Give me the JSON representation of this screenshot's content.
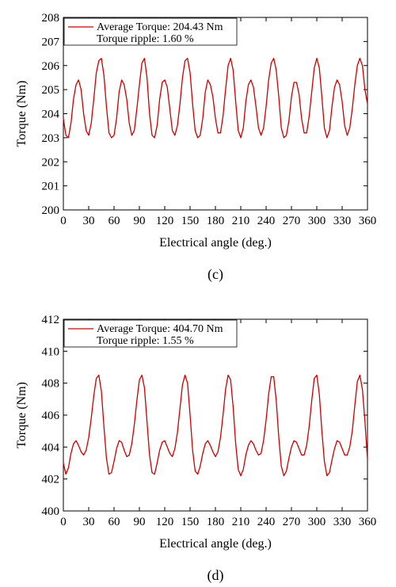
{
  "chart_data": [
    {
      "type": "line",
      "caption": "(c)",
      "xlabel": "Electrical angle (deg.)",
      "ylabel": "Torque (Nm)",
      "xlim": [
        0,
        360
      ],
      "ylim": [
        200,
        208
      ],
      "xticks": [
        0,
        30,
        60,
        90,
        120,
        150,
        180,
        210,
        240,
        270,
        300,
        330,
        360
      ],
      "yticks": [
        200,
        201,
        202,
        203,
        204,
        205,
        206,
        207,
        208
      ],
      "legend": [
        "Average Torque: 204.43 Nm",
        "Torque ripple: 1.60 %"
      ],
      "legend_position": "top-left",
      "line_color": "#cc0000",
      "series": [
        {
          "x": [
            0,
            3,
            6,
            9,
            12,
            15,
            18,
            21,
            24,
            27,
            30,
            33,
            36,
            39,
            42,
            45,
            48,
            51,
            54,
            57,
            60,
            63,
            66,
            69,
            72,
            75,
            78,
            81,
            84,
            87,
            90,
            93,
            96,
            99,
            102,
            105,
            108,
            111,
            114,
            117,
            120,
            123,
            126,
            129,
            132,
            135,
            138,
            141,
            144,
            147,
            150,
            153,
            156,
            159,
            162,
            165,
            168,
            171,
            174,
            177,
            180,
            183,
            186,
            189,
            192,
            195,
            198,
            201,
            204,
            207,
            210,
            213,
            216,
            219,
            222,
            225,
            228,
            231,
            234,
            237,
            240,
            243,
            246,
            249,
            252,
            255,
            258,
            261,
            264,
            267,
            270,
            273,
            276,
            279,
            282,
            285,
            288,
            291,
            294,
            297,
            300,
            303,
            306,
            309,
            312,
            315,
            318,
            321,
            324,
            327,
            330,
            333,
            336,
            339,
            342,
            345,
            348,
            351,
            354,
            357,
            360
          ],
          "y": [
            203.8,
            203.1,
            203.0,
            203.6,
            204.6,
            205.2,
            205.4,
            205.0,
            204.0,
            203.3,
            203.1,
            203.6,
            204.6,
            205.7,
            206.2,
            206.3,
            205.6,
            204.3,
            203.2,
            203.0,
            203.1,
            203.8,
            204.9,
            205.4,
            205.2,
            204.6,
            203.6,
            203.1,
            203.3,
            204.2,
            205.2,
            206.1,
            206.3,
            205.5,
            204.0,
            203.1,
            203.0,
            203.5,
            204.6,
            205.3,
            205.4,
            205.1,
            204.2,
            203.3,
            203.1,
            203.5,
            204.4,
            205.5,
            206.2,
            206.3,
            205.7,
            204.4,
            203.3,
            203.0,
            203.1,
            203.8,
            204.9,
            205.4,
            205.2,
            204.7,
            203.8,
            203.2,
            203.2,
            203.9,
            205.0,
            206.0,
            206.3,
            205.8,
            204.5,
            203.3,
            203.0,
            203.4,
            204.5,
            205.2,
            205.4,
            205.1,
            204.3,
            203.4,
            203.1,
            203.4,
            204.3,
            205.4,
            206.1,
            206.3,
            205.8,
            204.7,
            203.4,
            203.0,
            203.1,
            203.7,
            204.7,
            205.3,
            205.3,
            204.8,
            203.8,
            203.2,
            203.2,
            203.9,
            204.9,
            205.9,
            206.3,
            205.9,
            204.7,
            203.4,
            203.0,
            203.3,
            204.3,
            205.1,
            205.4,
            205.2,
            204.5,
            203.5,
            203.1,
            203.4,
            204.2,
            205.2,
            206.0,
            206.3,
            206.0,
            205.0,
            204.4
          ]
        }
      ]
    },
    {
      "type": "line",
      "caption": "(d)",
      "xlabel": "Electrical angle (deg.)",
      "ylabel": "Torque (Nm)",
      "xlim": [
        0,
        360
      ],
      "ylim": [
        400,
        412
      ],
      "xticks": [
        0,
        30,
        60,
        90,
        120,
        150,
        180,
        210,
        240,
        270,
        300,
        330,
        360
      ],
      "yticks": [
        400,
        402,
        404,
        406,
        408,
        410,
        412
      ],
      "legend": [
        "Average Torque: 404.70 Nm",
        "Torque ripple: 1.55 %"
      ],
      "legend_position": "top-left",
      "line_color": "#cc0000",
      "series": [
        {
          "x": [
            0,
            3,
            6,
            9,
            12,
            15,
            18,
            21,
            24,
            27,
            30,
            33,
            36,
            39,
            42,
            45,
            48,
            51,
            54,
            57,
            60,
            63,
            66,
            69,
            72,
            75,
            78,
            81,
            84,
            87,
            90,
            93,
            96,
            99,
            102,
            105,
            108,
            111,
            114,
            117,
            120,
            123,
            126,
            129,
            132,
            135,
            138,
            141,
            144,
            147,
            150,
            153,
            156,
            159,
            162,
            165,
            168,
            171,
            174,
            177,
            180,
            183,
            186,
            189,
            192,
            195,
            198,
            201,
            204,
            207,
            210,
            213,
            216,
            219,
            222,
            225,
            228,
            231,
            234,
            237,
            240,
            243,
            246,
            249,
            252,
            255,
            258,
            261,
            264,
            267,
            270,
            273,
            276,
            279,
            282,
            285,
            288,
            291,
            294,
            297,
            300,
            303,
            306,
            309,
            312,
            315,
            318,
            321,
            324,
            327,
            330,
            333,
            336,
            339,
            342,
            345,
            348,
            351,
            354,
            357,
            360
          ],
          "y": [
            403.0,
            402.3,
            402.7,
            403.6,
            404.2,
            404.4,
            404.1,
            403.7,
            403.5,
            403.8,
            404.6,
            405.8,
            407.2,
            408.3,
            408.5,
            407.5,
            405.3,
            403.3,
            402.3,
            402.4,
            403.1,
            403.9,
            404.4,
            404.3,
            403.8,
            403.4,
            403.5,
            404.2,
            405.4,
            406.9,
            408.2,
            408.5,
            407.7,
            405.6,
            403.5,
            402.4,
            402.3,
            403.0,
            403.8,
            404.3,
            404.4,
            404.0,
            403.6,
            403.4,
            403.9,
            404.9,
            406.4,
            407.9,
            408.5,
            408.0,
            406.0,
            403.8,
            402.5,
            402.3,
            402.8,
            403.6,
            404.2,
            404.4,
            404.1,
            403.7,
            403.4,
            403.7,
            404.6,
            406.0,
            407.6,
            408.5,
            408.2,
            406.5,
            404.2,
            402.6,
            402.2,
            402.6,
            403.5,
            404.1,
            404.4,
            404.2,
            403.8,
            403.5,
            403.6,
            404.4,
            405.7,
            407.3,
            408.4,
            408.4,
            406.9,
            404.6,
            402.8,
            402.2,
            402.5,
            403.3,
            404.0,
            404.4,
            404.3,
            403.9,
            403.5,
            403.5,
            404.1,
            405.3,
            406.9,
            408.3,
            408.5,
            407.3,
            405.0,
            403.1,
            402.2,
            402.4,
            403.2,
            403.9,
            404.4,
            404.3,
            403.9,
            403.5,
            403.5,
            404.0,
            405.0,
            406.6,
            408.1,
            408.5,
            407.6,
            405.6,
            403.2
          ]
        }
      ]
    }
  ]
}
